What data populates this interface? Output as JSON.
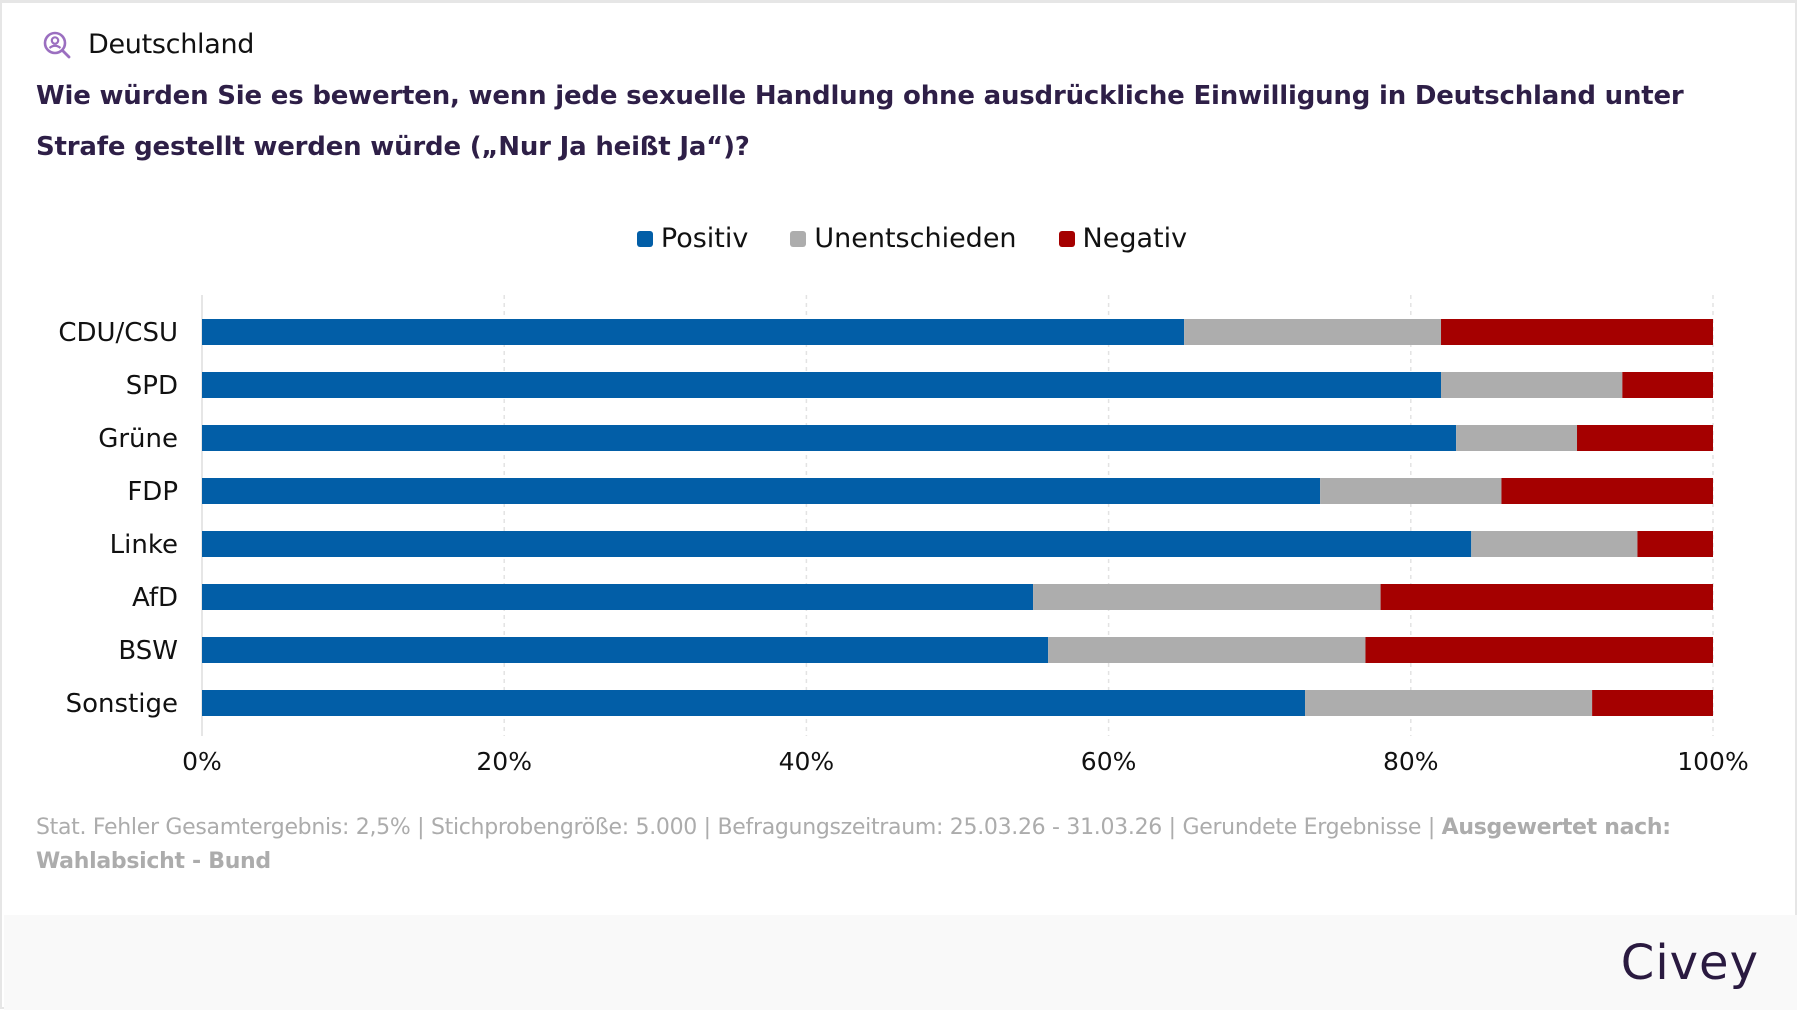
{
  "header": {
    "region_icon": "person-search-icon",
    "region_label": "Deutschland",
    "question": "Wie würden Sie es bewerten, wenn jede sexuelle Handlung ohne ausdrückliche Einwilligung in Deutschland unter Strafe gestellt werden würde („Nur Ja heißt Ja“)?"
  },
  "legend": [
    {
      "label": "Positiv",
      "color": "#025ea7"
    },
    {
      "label": "Unentschieden",
      "color": "#adadad"
    },
    {
      "label": "Negativ",
      "color": "#a50000"
    }
  ],
  "chart_data": {
    "type": "bar",
    "orientation": "horizontal",
    "stacked": true,
    "title": "Wie würden Sie es bewerten, wenn jede sexuelle Handlung ohne ausdrückliche Einwilligung in Deutschland unter Strafe gestellt werden würde („Nur Ja heißt Ja“)?",
    "xlabel": "",
    "ylabel": "",
    "categories": [
      "CDU/CSU",
      "SPD",
      "Grüne",
      "FDP",
      "Linke",
      "AfD",
      "BSW",
      "Sonstige"
    ],
    "series": [
      {
        "name": "Positiv",
        "color": "#025ea7",
        "values": [
          65,
          82,
          83,
          74,
          84,
          55,
          56,
          73
        ]
      },
      {
        "name": "Unentschieden",
        "color": "#adadad",
        "values": [
          17,
          12,
          8,
          12,
          11,
          23,
          21,
          19
        ]
      },
      {
        "name": "Negativ",
        "color": "#a50000",
        "values": [
          18,
          6,
          9,
          14,
          5,
          22,
          23,
          8
        ]
      }
    ],
    "xlim": [
      0,
      100
    ],
    "xticks": [
      0,
      20,
      40,
      60,
      80,
      100
    ],
    "xtick_labels": [
      "0%",
      "20%",
      "40%",
      "60%",
      "80%",
      "100%"
    ],
    "grid": true,
    "legend_position": "top-center"
  },
  "footnote": {
    "text": "Stat. Fehler Gesamtergebnis: 2,5% | Stichprobengröße: 5.000 | Befragungszeitraum: 25.03.26 - 31.03.26 | Gerundete Ergebnisse | ",
    "bold": "Ausgewertet nach: Wahlabsicht - Bund"
  },
  "footer": {
    "brand": "Civey"
  }
}
